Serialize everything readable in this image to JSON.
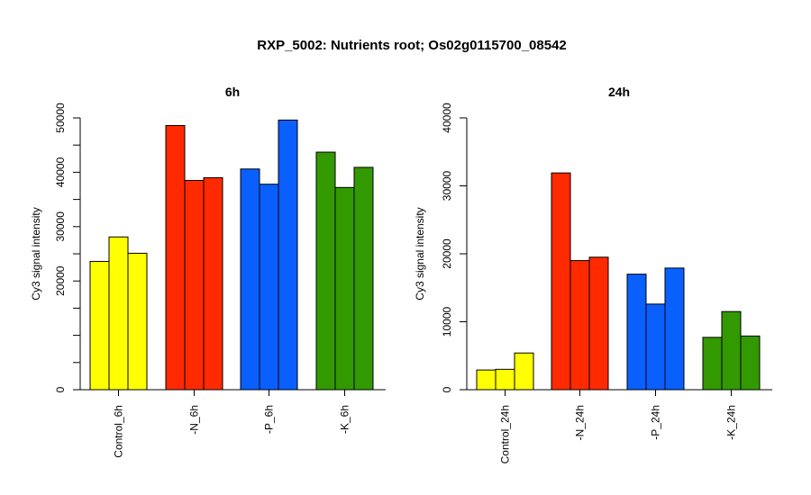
{
  "main_title": "RXP_5002: Nutrients root; Os02g0115700_08542",
  "chart_data": [
    {
      "type": "bar",
      "title": "6h",
      "ylabel": "Cy3 signal intensity",
      "ylim": [
        0,
        50000
      ],
      "yticks": [
        "0",
        "20000",
        "30000",
        "40000",
        "50000"
      ],
      "ytick_values": [
        0,
        20000,
        30000,
        40000,
        50000
      ],
      "minor_yticks": [
        5000,
        10000,
        15000,
        25000,
        35000,
        45000
      ],
      "groups": [
        {
          "label": "Control_6h",
          "color": "#ffff00",
          "values": [
            23600,
            28100,
            25100
          ]
        },
        {
          "label": "-N_6h",
          "color": "#ff2a00",
          "values": [
            48600,
            38500,
            39000
          ]
        },
        {
          "label": "-P_6h",
          "color": "#0a5fff",
          "values": [
            40600,
            37800,
            49600
          ]
        },
        {
          "label": "-K_6h",
          "color": "#339900",
          "values": [
            43700,
            37200,
            40900
          ]
        }
      ]
    },
    {
      "type": "bar",
      "title": "24h",
      "ylabel": "Cy3 signal intensity",
      "ylim": [
        0,
        40000
      ],
      "yticks": [
        "0",
        "10000",
        "20000",
        "30000",
        "40000"
      ],
      "ytick_values": [
        0,
        10000,
        20000,
        30000,
        40000
      ],
      "minor_yticks": [],
      "groups": [
        {
          "label": "Control_24h",
          "color": "#ffff00",
          "values": [
            2900,
            3000,
            5400
          ]
        },
        {
          "label": "-N_24h",
          "color": "#ff2a00",
          "values": [
            31900,
            19000,
            19500
          ]
        },
        {
          "label": "-P_24h",
          "color": "#0a5fff",
          "values": [
            17000,
            12600,
            17900
          ]
        },
        {
          "label": "-K_24h",
          "color": "#339900",
          "values": [
            7700,
            11500,
            7900
          ]
        }
      ]
    }
  ]
}
